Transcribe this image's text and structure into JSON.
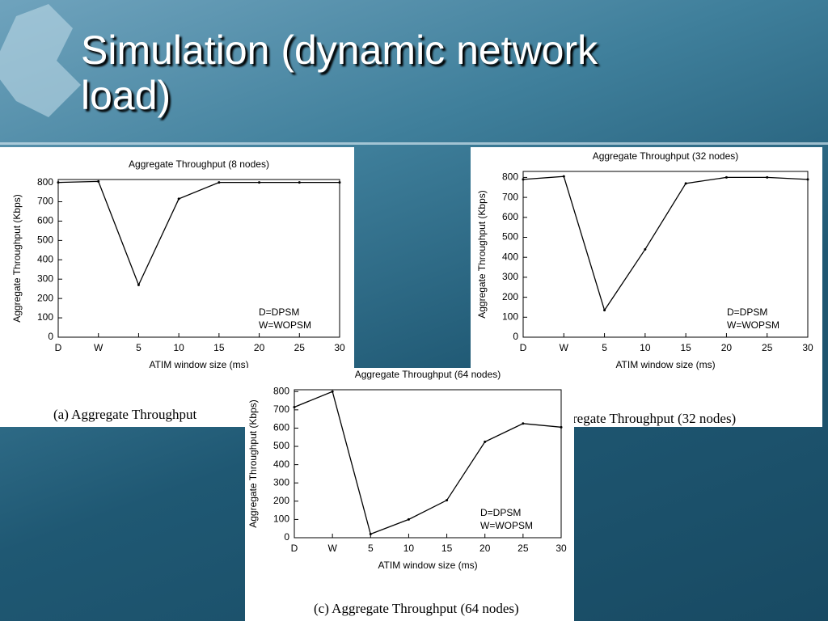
{
  "slide_title": "Simulation (dynamic network load)",
  "chart_data": [
    {
      "type": "line",
      "title": "Aggregate Throughput (8 nodes)",
      "xlabel": "ATIM window size (ms)",
      "ylabel": "Aggregate Throughput (Kbps)",
      "categories": [
        "D",
        "W",
        "5",
        "10",
        "15",
        "20",
        "25",
        "30"
      ],
      "values": [
        800,
        805,
        270,
        715,
        800,
        800,
        800,
        800
      ],
      "color": "#000000",
      "ylim": [
        0,
        815
      ],
      "yticks": [
        0,
        100,
        200,
        300,
        400,
        500,
        600,
        700,
        800
      ],
      "annotations": [
        "D=DPSM",
        "W=WOPSM"
      ],
      "caption": "(a) Aggregate Throughput"
    },
    {
      "type": "line",
      "title": "Aggregate Throughput (32 nodes)",
      "xlabel": "ATIM window size (ms)",
      "ylabel": "Aggregate Throughput (Kbps)",
      "categories": [
        "D",
        "W",
        "5",
        "10",
        "15",
        "20",
        "25",
        "30"
      ],
      "values": [
        790,
        805,
        135,
        440,
        770,
        800,
        800,
        790
      ],
      "color": "#000000",
      "ylim": [
        0,
        830
      ],
      "yticks": [
        0,
        100,
        200,
        300,
        400,
        500,
        600,
        700,
        800
      ],
      "annotations": [
        "D=DPSM",
        "W=WOPSM"
      ],
      "caption": "regate Throughput (32 nodes)"
    },
    {
      "type": "line",
      "title": "Aggregate Throughput (64 nodes)",
      "xlabel": "ATIM window size (ms)",
      "ylabel": "Aggregate Throughput (Kbps)",
      "categories": [
        "D",
        "W",
        "5",
        "10",
        "15",
        "20",
        "25",
        "30"
      ],
      "values": [
        715,
        800,
        20,
        100,
        205,
        525,
        625,
        605
      ],
      "color": "#000000",
      "ylim": [
        0,
        810
      ],
      "yticks": [
        0,
        100,
        200,
        300,
        400,
        500,
        600,
        700,
        800
      ],
      "annotations": [
        "D=DPSM",
        "W=WOPSM"
      ],
      "caption": "(c) Aggregate Throughput (64 nodes)"
    }
  ]
}
